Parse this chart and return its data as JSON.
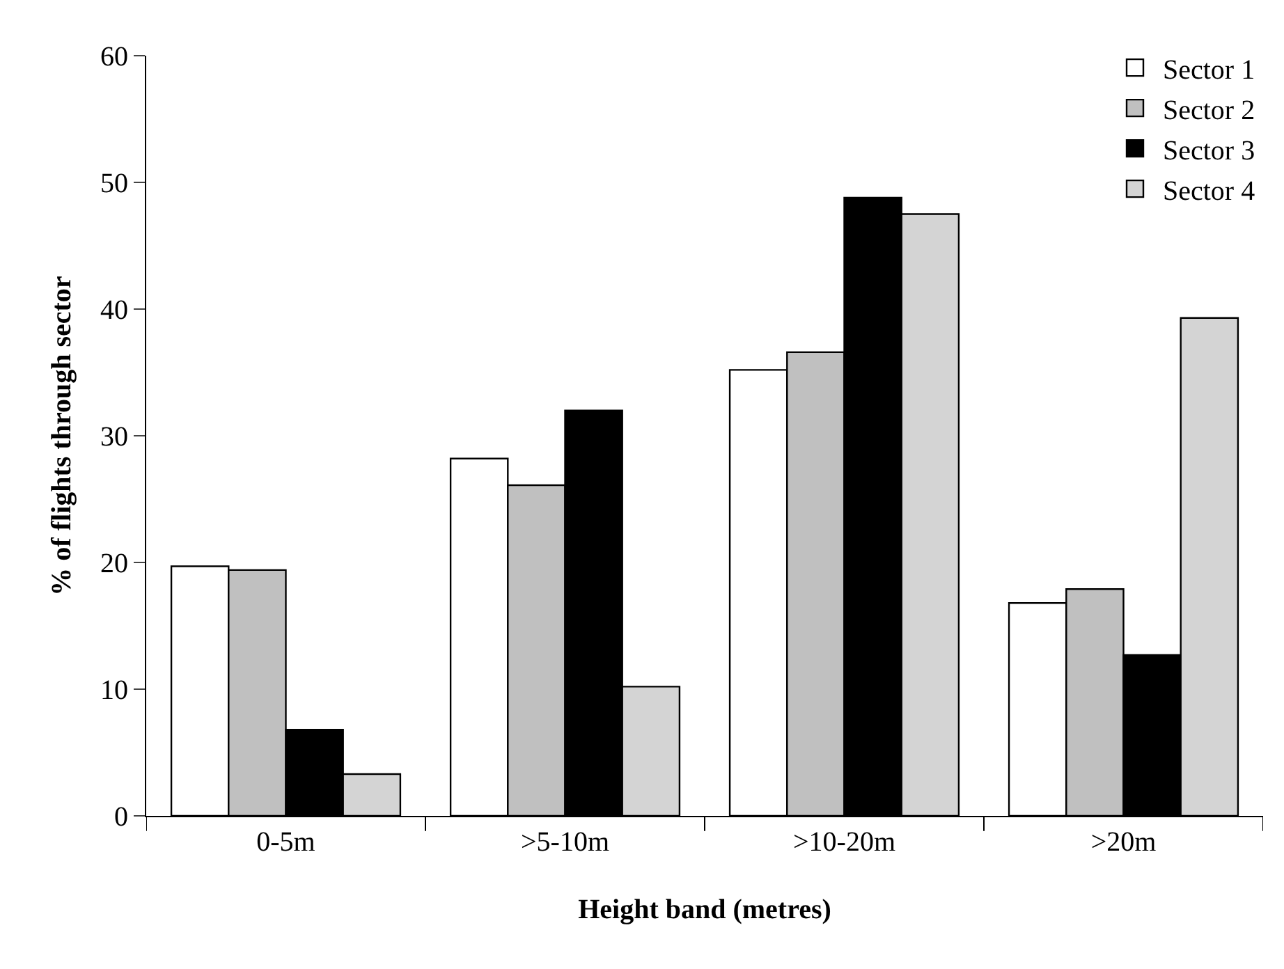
{
  "chart_data": {
    "type": "bar",
    "xlabel": "Height band (metres)",
    "ylabel": "% of flights through sector",
    "categories": [
      "0-5m",
      ">5-10m",
      ">10-20m",
      ">20m"
    ],
    "series": [
      {
        "name": "Sector 1",
        "color": "#ffffff",
        "values": [
          19.7,
          28.2,
          35.2,
          16.8
        ]
      },
      {
        "name": "Sector 2",
        "color": "#c0c0c0",
        "values": [
          19.4,
          26.1,
          36.6,
          17.9
        ]
      },
      {
        "name": "Sector 3",
        "color": "#000000",
        "values": [
          6.8,
          32.0,
          48.8,
          12.7
        ]
      },
      {
        "name": "Sector 4",
        "color": "#d4d4d4",
        "values": [
          3.3,
          10.2,
          47.5,
          39.3
        ]
      }
    ],
    "ylim": [
      0,
      60
    ],
    "yticks": [
      0,
      10,
      20,
      30,
      40,
      50,
      60
    ],
    "legend": "top right"
  }
}
